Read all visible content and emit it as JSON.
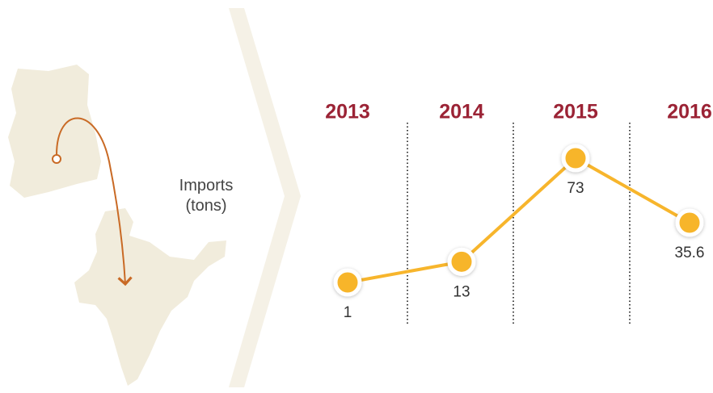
{
  "chart_data": {
    "type": "line",
    "ylabel": "Imports (tons)",
    "categories": [
      "2013",
      "2014",
      "2015",
      "2016"
    ],
    "series": [
      {
        "color": "#f7b52c",
        "values": [
          1,
          13,
          73,
          35.6
        ]
      }
    ]
  }
}
